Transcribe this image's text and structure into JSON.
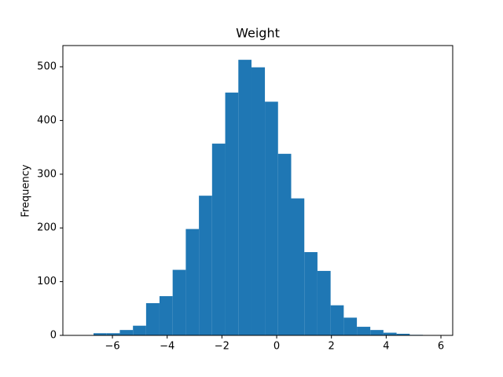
{
  "chart_data": {
    "type": "histogram",
    "title": "Weight",
    "ylabel": "Frequency",
    "color": "#1f77b4",
    "bins": [
      -6.69,
      -6.21,
      -5.73,
      -5.25,
      -4.77,
      -4.28,
      -3.8,
      -3.32,
      -2.84,
      -2.36,
      -1.88,
      -1.4,
      -0.92,
      -0.43,
      0.05,
      0.53,
      1.01,
      1.49,
      1.97,
      2.45,
      2.93,
      3.42,
      3.9,
      4.38,
      4.86,
      5.34
    ],
    "values": [
      4,
      4,
      10,
      18,
      60,
      73,
      122,
      198,
      260,
      357,
      452,
      513,
      499,
      435,
      338,
      255,
      155,
      120,
      56,
      33,
      16,
      10,
      5,
      3,
      1
    ],
    "xlim": [
      -7.81,
      6.43
    ],
    "ylim": [
      0,
      539.5
    ],
    "xticks": [
      {
        "value": -6,
        "label": "−6"
      },
      {
        "value": -4,
        "label": "−4"
      },
      {
        "value": -2,
        "label": "−2"
      },
      0,
      2,
      4,
      6
    ],
    "yticks": [
      0,
      100,
      200,
      300,
      400,
      500
    ]
  }
}
